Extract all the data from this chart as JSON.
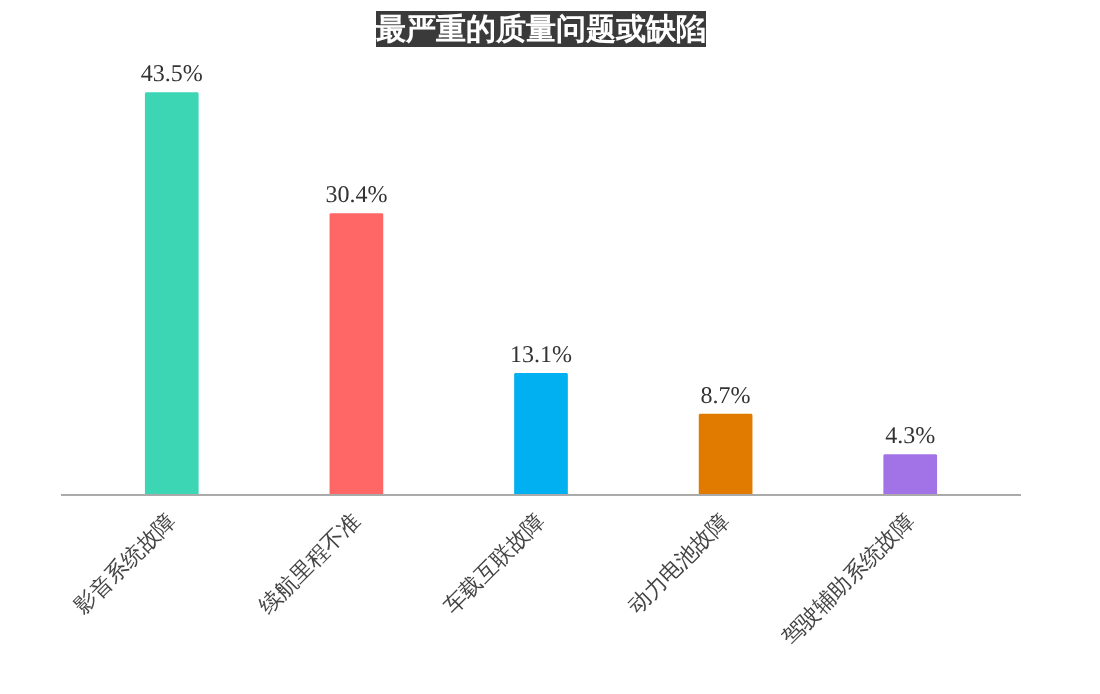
{
  "chart_data": {
    "type": "bar",
    "title": "最严重的质量问题或缺陷",
    "categories": [
      "影音系统故障",
      "续航里程不准",
      "车载互联故障",
      "动力电池故障",
      "驾驶辅助系统故障"
    ],
    "values": [
      43.5,
      30.4,
      13.1,
      8.7,
      4.3
    ],
    "colors": [
      "#3dd6b5",
      "#ff6666",
      "#00b0f0",
      "#e07b00",
      "#a173e6"
    ],
    "value_labels": [
      "43.5%",
      "30.4%",
      "13.1%",
      "8.7%",
      "4.3%"
    ],
    "grid": false
  }
}
